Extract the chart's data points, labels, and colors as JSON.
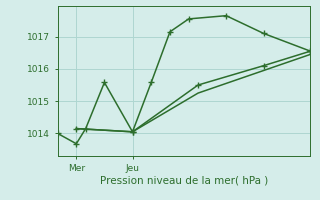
{
  "xlabel": "Pression niveau de la mer( hPa )",
  "bg_color": "#d5edea",
  "grid_color": "#aed6d1",
  "line_color": "#2d6e2d",
  "ylim": [
    1013.3,
    1017.95
  ],
  "yticks": [
    1014,
    1015,
    1016,
    1017
  ],
  "xtick_labels": [
    "Mer",
    "Jeu"
  ],
  "xtick_pos": [
    1,
    4
  ],
  "xlim": [
    0,
    13.5
  ],
  "line1_x": [
    0,
    1,
    1.5,
    2.5,
    4,
    5,
    6,
    7,
    9,
    11,
    13.5
  ],
  "line1_y": [
    1014.0,
    1013.68,
    1014.15,
    1015.58,
    1014.05,
    1015.58,
    1017.15,
    1017.55,
    1017.65,
    1017.1,
    1016.55
  ],
  "line2_x": [
    1,
    4,
    7.5,
    11,
    13.5
  ],
  "line2_y": [
    1014.15,
    1014.05,
    1015.5,
    1016.1,
    1016.55
  ],
  "line3_x": [
    1,
    4,
    7.5,
    11,
    13.5
  ],
  "line3_y": [
    1014.15,
    1014.05,
    1015.25,
    1015.95,
    1016.45
  ],
  "linewidth": 1.1,
  "marker_size": 4
}
